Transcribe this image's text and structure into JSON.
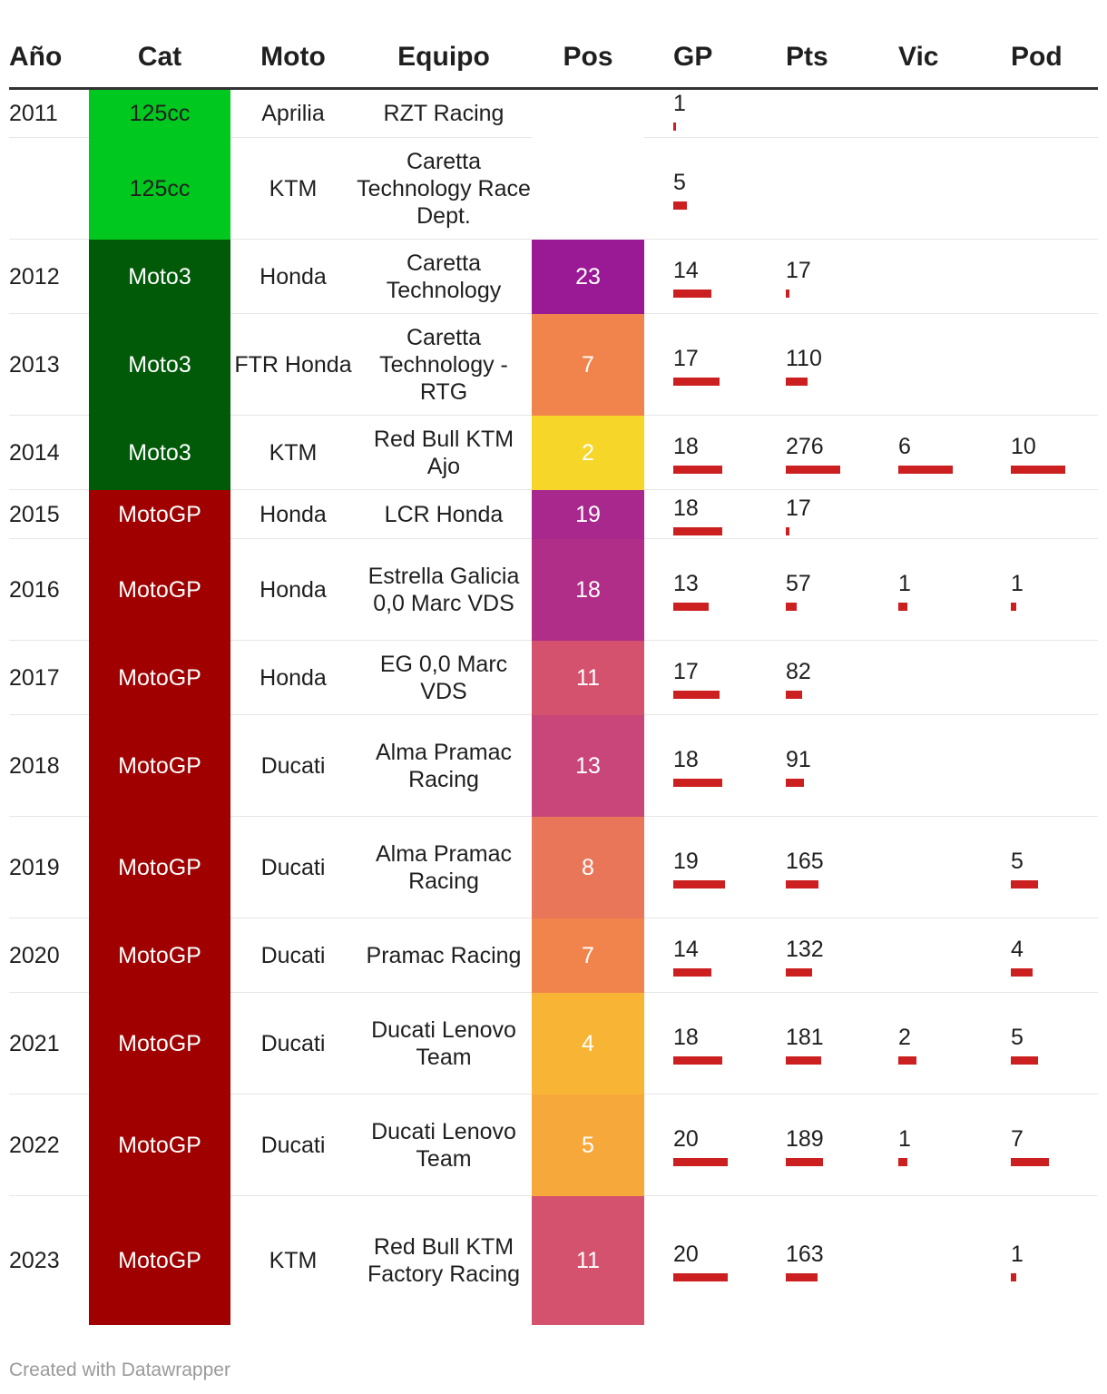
{
  "chart_data": {
    "type": "table",
    "columns": [
      "Año",
      "Cat",
      "Moto",
      "Equipo",
      "Pos",
      "GP",
      "Pts",
      "Vic",
      "Pod"
    ],
    "bar_max": {
      "GP": 20,
      "Pts": 276,
      "Vic": 6,
      "Pod": 10
    },
    "category_colors": {
      "125cc": "#00c81e",
      "Moto3": "#005a08",
      "MotoGP": "#a00000"
    },
    "rows": [
      {
        "year": "2011",
        "cat": "125cc",
        "moto": "Aprilia",
        "team": "RZT Racing",
        "pos": "",
        "pos_color": "",
        "gp": 1,
        "pts": null,
        "vic": null,
        "pod": null
      },
      {
        "year": "",
        "cat": "125cc",
        "moto": "KTM",
        "team": "Caretta Technology Race Dept.",
        "pos": "",
        "pos_color": "",
        "gp": 5,
        "pts": null,
        "vic": null,
        "pod": null
      },
      {
        "year": "2012",
        "cat": "Moto3",
        "moto": "Honda",
        "team": "Caretta Technology",
        "pos": "23",
        "pos_color": "#9a1a96",
        "gp": 14,
        "pts": 17,
        "vic": null,
        "pod": null
      },
      {
        "year": "2013",
        "cat": "Moto3",
        "moto": "FTR Honda",
        "team": "Caretta Technology - RTG",
        "pos": "7",
        "pos_color": "#f0844c",
        "gp": 17,
        "pts": 110,
        "vic": null,
        "pod": null
      },
      {
        "year": "2014",
        "cat": "Moto3",
        "moto": "KTM",
        "team": "Red Bull KTM Ajo",
        "pos": "2",
        "pos_color": "#f7d62a",
        "gp": 18,
        "pts": 276,
        "vic": 6,
        "pod": 10
      },
      {
        "year": "2015",
        "cat": "MotoGP",
        "moto": "Honda",
        "team": "LCR Honda",
        "pos": "19",
        "pos_color": "#a8288e",
        "gp": 18,
        "pts": 17,
        "vic": null,
        "pod": null
      },
      {
        "year": "2016",
        "cat": "MotoGP",
        "moto": "Honda",
        "team": "Estrella Galicia 0,0 Marc VDS",
        "pos": "18",
        "pos_color": "#b02e88",
        "gp": 13,
        "pts": 57,
        "vic": 1,
        "pod": 1
      },
      {
        "year": "2017",
        "cat": "MotoGP",
        "moto": "Honda",
        "team": "EG 0,0 Marc VDS",
        "pos": "11",
        "pos_color": "#d4526e",
        "gp": 17,
        "pts": 82,
        "vic": null,
        "pod": null
      },
      {
        "year": "2018",
        "cat": "MotoGP",
        "moto": "Ducati",
        "team": "Alma Pramac Racing",
        "pos": "13",
        "pos_color": "#c8467a",
        "gp": 18,
        "pts": 91,
        "vic": null,
        "pod": null
      },
      {
        "year": "2019",
        "cat": "MotoGP",
        "moto": "Ducati",
        "team": "Alma Pramac Racing",
        "pos": "8",
        "pos_color": "#ea765a",
        "gp": 19,
        "pts": 165,
        "vic": null,
        "pod": 5
      },
      {
        "year": "2020",
        "cat": "MotoGP",
        "moto": "Ducati",
        "team": "Pramac Racing",
        "pos": "7",
        "pos_color": "#f0844c",
        "gp": 14,
        "pts": 132,
        "vic": null,
        "pod": 4
      },
      {
        "year": "2021",
        "cat": "MotoGP",
        "moto": "Ducati",
        "team": "Ducati Lenovo Team",
        "pos": "4",
        "pos_color": "#f8b535",
        "gp": 18,
        "pts": 181,
        "vic": 2,
        "pod": 5
      },
      {
        "year": "2022",
        "cat": "MotoGP",
        "moto": "Ducati",
        "team": "Ducati Lenovo Team",
        "pos": "5",
        "pos_color": "#f7a83a",
        "gp": 20,
        "pts": 189,
        "vic": 1,
        "pod": 7
      },
      {
        "year": "2023",
        "cat": "MotoGP",
        "moto": "KTM",
        "team": "Red Bull KTM Factory Racing",
        "pos": "11",
        "pos_color": "#d4526e",
        "gp": 20,
        "pts": 163,
        "vic": null,
        "pod": 1
      }
    ]
  },
  "footer": {
    "credit": "Created with Datawrapper"
  }
}
